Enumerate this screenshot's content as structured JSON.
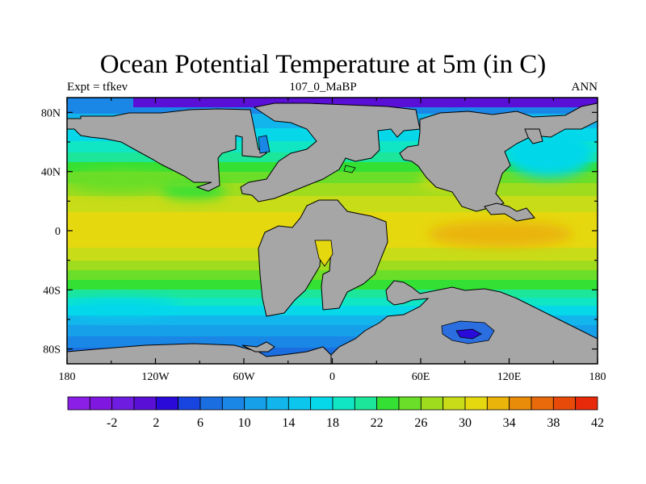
{
  "title": "Ocean Potential Temperature at 5m (in C)",
  "left_string": "Expt = tfkev",
  "center_string": "107_0_MaBP",
  "right_string": "ANN",
  "axes": {
    "lon_range": [
      -180,
      180
    ],
    "lat_range": [
      -90,
      90
    ],
    "x_ticks": [
      {
        "value": -180,
        "label": "180"
      },
      {
        "value": -120,
        "label": "120W"
      },
      {
        "value": -60,
        "label": "60W"
      },
      {
        "value": 0,
        "label": "0"
      },
      {
        "value": 60,
        "label": "60E"
      },
      {
        "value": 120,
        "label": "120E"
      },
      {
        "value": 180,
        "label": "180"
      }
    ],
    "y_ticks": [
      {
        "value": 80,
        "label": "80N"
      },
      {
        "value": 40,
        "label": "40N"
      },
      {
        "value": 0,
        "label": "0"
      },
      {
        "value": -40,
        "label": "40S"
      },
      {
        "value": -80,
        "label": "80S"
      }
    ]
  },
  "colorbar": {
    "levels": [
      -4,
      -2,
      0,
      2,
      4,
      6,
      8,
      10,
      12,
      14,
      16,
      18,
      20,
      22,
      24,
      26,
      28,
      30,
      32,
      34,
      36,
      38,
      40,
      42,
      44
    ],
    "colors": [
      "#8b1fe6",
      "#8017e0",
      "#6e1ce0",
      "#5a0fd6",
      "#2a0ad9",
      "#1844e0",
      "#1a6ee0",
      "#1a86e6",
      "#17a0ea",
      "#12b6ec",
      "#0cc6ee",
      "#06d8ea",
      "#10e6c4",
      "#1ce69a",
      "#34e034",
      "#6ade28",
      "#a0dc1e",
      "#c8dc18",
      "#e6d80f",
      "#eab40a",
      "#e88c0a",
      "#e86a0a",
      "#e84a0a",
      "#e82a0a"
    ],
    "labels": [
      "-2",
      "2",
      "6",
      "10",
      "14",
      "18",
      "22",
      "26",
      "30",
      "34",
      "38",
      "42"
    ]
  },
  "land_color": "#a6a6a6"
}
